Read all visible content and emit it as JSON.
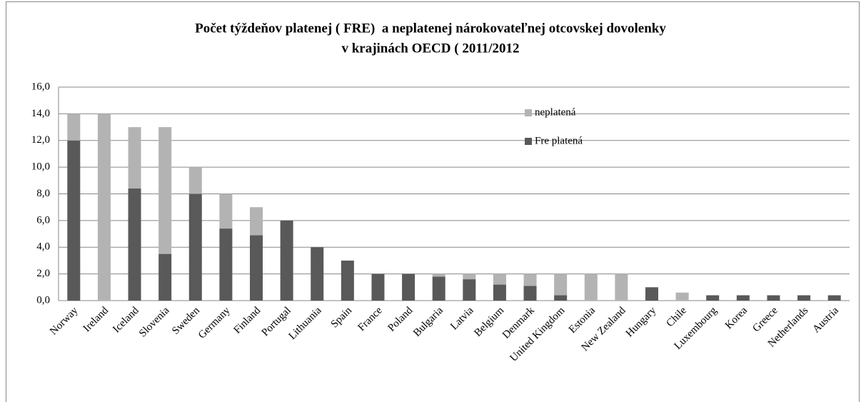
{
  "chart_data": {
    "type": "stacked_bar",
    "title": [
      "Počet týždeňov platenej ( FRE)  a neplatenej nárokovateľnej otcovskej dovolenky",
      "v krajinách OECD ( 2011/2012"
    ],
    "categories": [
      "Norway",
      "Ireland",
      "Iceland",
      "Slovenia",
      "Sweden",
      "Germany",
      "Finland",
      "Portugal",
      "Lithuania",
      "Spain",
      "France",
      "Poland",
      "Bulgaria",
      "Latvia",
      "Belgium",
      "Denmark",
      "United Kingdom",
      "Estonia",
      "New Zealand",
      "Hungary",
      "Chile",
      "Luxembourg",
      "Korea",
      "Greece",
      "Netherlands",
      "Austria"
    ],
    "series": [
      {
        "name": "Fre platená",
        "color": "#595959",
        "values": [
          12,
          0,
          8.4,
          3.5,
          8,
          5.4,
          4.9,
          6,
          4,
          3,
          2,
          2,
          1.8,
          1.6,
          1.2,
          1.1,
          0.4,
          0,
          0,
          1,
          0,
          0.4,
          0.4,
          0.4,
          0.4,
          0.4
        ]
      },
      {
        "name": "neplatená",
        "color": "#b3b3b3",
        "values": [
          2,
          14,
          4.6,
          9.5,
          2,
          2.6,
          2.1,
          0,
          0,
          0,
          0,
          0,
          0.2,
          0.4,
          0.8,
          0.9,
          1.6,
          2,
          2,
          0,
          0.6,
          0,
          0,
          0,
          0,
          0
        ]
      }
    ],
    "ylim": [
      0,
      16
    ],
    "yticks": [
      {
        "value": 0,
        "label": "0,0"
      },
      {
        "value": 2,
        "label": "2,0"
      },
      {
        "value": 4,
        "label": "4,0"
      },
      {
        "value": 6,
        "label": "6,0"
      },
      {
        "value": 8,
        "label": "8,0"
      },
      {
        "value": 10,
        "label": "10,0"
      },
      {
        "value": 12,
        "label": "12,0"
      },
      {
        "value": 14,
        "label": "14,0"
      },
      {
        "value": 16,
        "label": "16,0"
      }
    ],
    "grid": true
  }
}
